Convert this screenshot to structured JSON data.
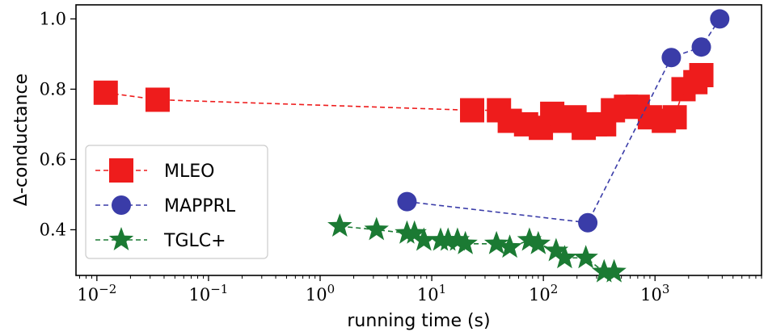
{
  "chart_data": {
    "type": "scatter",
    "xlabel": "running time (s)",
    "ylabel": "Δ-conductance",
    "xscale": "log",
    "xlim": [
      0.0065,
      9000
    ],
    "ylim": [
      0.27,
      1.04
    ],
    "x_ticks": [
      {
        "value": 0.01,
        "base": "10",
        "exp": "−2"
      },
      {
        "value": 0.1,
        "base": "10",
        "exp": "−1"
      },
      {
        "value": 1,
        "base": "10",
        "exp": "0"
      },
      {
        "value": 10,
        "base": "10",
        "exp": "1"
      },
      {
        "value": 100,
        "base": "10",
        "exp": "2"
      },
      {
        "value": 1000,
        "base": "10",
        "exp": "3"
      }
    ],
    "y_ticks": [
      {
        "value": 0.4,
        "label": "0.4"
      },
      {
        "value": 0.6,
        "label": "0.6"
      },
      {
        "value": 0.8,
        "label": "0.8"
      },
      {
        "value": 1.0,
        "label": "1.0"
      }
    ],
    "grid": false,
    "legend": "bottom-left",
    "series": [
      {
        "name": "MLEO",
        "marker": "square",
        "color": "#ee1c1c",
        "x": [
          0.012,
          0.035,
          23,
          40,
          50,
          70,
          95,
          120,
          150,
          190,
          230,
          290,
          350,
          420,
          550,
          700,
          900,
          1200,
          1500,
          1800,
          2300,
          2600
        ],
        "y": [
          0.79,
          0.77,
          0.74,
          0.74,
          0.71,
          0.7,
          0.69,
          0.73,
          0.71,
          0.72,
          0.69,
          0.7,
          0.7,
          0.74,
          0.75,
          0.75,
          0.72,
          0.71,
          0.72,
          0.8,
          0.82,
          0.84
        ]
      },
      {
        "name": "MAPPRL",
        "marker": "circle",
        "color": "#3a3ca8",
        "x": [
          6,
          250,
          1400,
          2600,
          3800
        ],
        "y": [
          0.48,
          0.42,
          0.89,
          0.92,
          1.0
        ]
      },
      {
        "name": "TGLC+",
        "marker": "star",
        "color": "#1b7a33",
        "x": [
          1.5,
          3.2,
          6,
          7,
          8.5,
          12,
          14,
          17,
          20,
          38,
          50,
          75,
          90,
          130,
          155,
          240,
          350,
          430
        ],
        "y": [
          0.41,
          0.4,
          0.39,
          0.39,
          0.37,
          0.37,
          0.37,
          0.37,
          0.36,
          0.36,
          0.35,
          0.37,
          0.36,
          0.34,
          0.32,
          0.32,
          0.28,
          0.28
        ]
      }
    ]
  }
}
